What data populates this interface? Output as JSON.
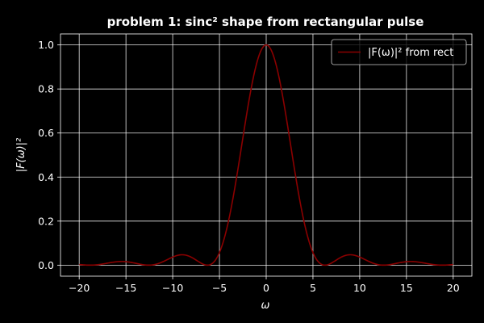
{
  "chart_data": {
    "type": "line",
    "title": "problem 1: sinc² shape from rectangular pulse",
    "xlabel": "ω",
    "ylabel": "|F(ω)|²",
    "xlim": [
      -22,
      22
    ],
    "ylim": [
      -0.05,
      1.05
    ],
    "xticks": [
      -20,
      -15,
      -10,
      -5,
      0,
      5,
      10,
      15,
      20
    ],
    "yticks": [
      0.0,
      0.2,
      0.4,
      0.6,
      0.8,
      1.0
    ],
    "grid": true,
    "legend_position": "top-right",
    "series": [
      {
        "name": "|F(ω)|² from rect",
        "color": "#8b0000",
        "function": "sinc_squared",
        "zeros_spacing": 6.283,
        "x_range": [
          -20,
          20
        ],
        "x": [
          -20,
          -15.7,
          -12.57,
          -9.0,
          -6.28,
          -4,
          -2,
          -1,
          0,
          1,
          2,
          4,
          6.28,
          9.0,
          12.57,
          15.7,
          20
        ],
        "values": [
          0.0,
          0.016,
          0.0,
          0.045,
          0.0,
          0.29,
          0.83,
          0.95,
          1.0,
          0.95,
          0.83,
          0.29,
          0.0,
          0.045,
          0.0,
          0.016,
          0.0
        ]
      }
    ]
  }
}
